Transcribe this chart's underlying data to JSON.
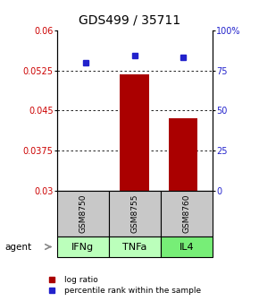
{
  "title": "GDS499 / 35711",
  "samples": [
    "GSM8750",
    "GSM8755",
    "GSM8760"
  ],
  "agents": [
    "IFNg",
    "TNFa",
    "IL4"
  ],
  "log_ratios": [
    0.0301,
    0.0518,
    0.0435
  ],
  "percentile_ranks": [
    80,
    84,
    83
  ],
  "ylim_left": [
    0.03,
    0.06
  ],
  "ylim_right": [
    0,
    100
  ],
  "yticks_left": [
    0.03,
    0.0375,
    0.045,
    0.0525,
    0.06
  ],
  "yticks_right": [
    0,
    25,
    50,
    75,
    100
  ],
  "ytick_labels_left": [
    "0.03",
    "0.0375",
    "0.045",
    "0.0525",
    "0.06"
  ],
  "ytick_labels_right": [
    "0",
    "25",
    "50",
    "75",
    "100%"
  ],
  "bar_color": "#aa0000",
  "dot_color": "#2222cc",
  "baseline": 0.03,
  "sample_box_color": "#c8c8c8",
  "agent_colors": [
    "#bbffbb",
    "#bbffbb",
    "#77ee77"
  ],
  "legend_bar_label": "log ratio",
  "legend_dot_label": "percentile rank within the sample"
}
